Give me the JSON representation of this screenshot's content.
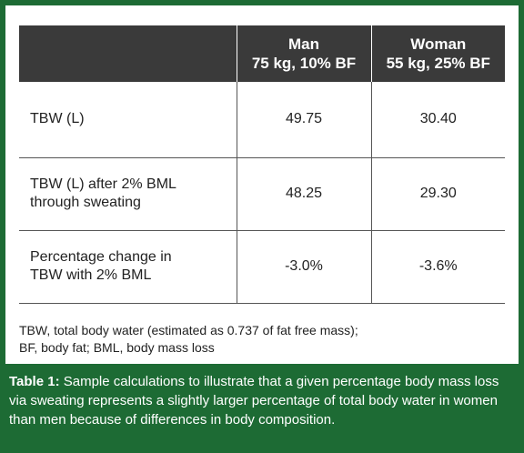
{
  "table": {
    "headers": [
      {
        "line1": "",
        "line2": ""
      },
      {
        "line1": "Man",
        "line2": "75 kg, 10% BF"
      },
      {
        "line1": "Woman",
        "line2": "55 kg, 25% BF"
      }
    ],
    "rows": [
      {
        "label_lines": [
          "TBW (L)"
        ],
        "man": "49.75",
        "woman": "30.40"
      },
      {
        "label_lines": [
          "TBW (L) after 2% BML",
          "through sweating"
        ],
        "man": "48.25",
        "woman": "29.30"
      },
      {
        "label_lines": [
          "Percentage change in",
          "TBW with 2% BML"
        ],
        "man": "-3.0%",
        "woman": "-3.6%"
      }
    ]
  },
  "footnote": {
    "line1": "TBW, total body water (estimated as 0.737 of fat free mass);",
    "line2": "BF, body fat; BML, body mass loss"
  },
  "caption": {
    "label": "Table 1:",
    "text": " Sample calculations to illustrate that a given percentage body mass loss via sweating represents a slightly larger percentage of total body water in women than men because of differences in body composition."
  },
  "colors": {
    "frame": "#1d6b34",
    "header_bg": "#3a3a3a",
    "panel_bg": "#ffffff"
  }
}
